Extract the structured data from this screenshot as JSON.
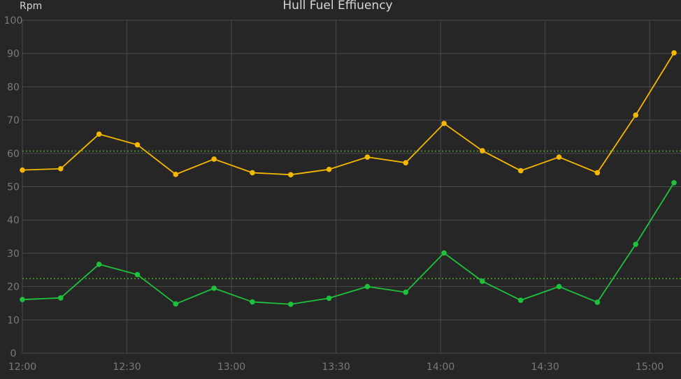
{
  "chart_data": {
    "type": "line",
    "title": "Hull Fuel Effiuency",
    "xlabel": "",
    "ylabel": "Rpm",
    "ylim": [
      0,
      100
    ],
    "yticks": [
      "0",
      "10",
      "20",
      "30",
      "40",
      "50",
      "60",
      "70",
      "80",
      "90",
      "100"
    ],
    "xticks": [
      "12:00",
      "12:30",
      "13:00",
      "13:30",
      "14:00",
      "14:30",
      "15:00"
    ],
    "xlim": [
      "12:00",
      "15:09"
    ],
    "grid": true,
    "x": [
      "12:00",
      "12:11",
      "12:22",
      "12:33",
      "12:44",
      "12:55",
      "13:06",
      "13:17",
      "13:28",
      "13:39",
      "13:50",
      "14:01",
      "14:12",
      "14:23",
      "14:34",
      "14:45",
      "14:56",
      "15:07"
    ],
    "series": [
      {
        "color": "#f5b800",
        "values": [
          55,
          55.4,
          65.8,
          62.6,
          53.7,
          58.3,
          54.2,
          53.6,
          55.2,
          58.9,
          57.2,
          69,
          60.8,
          54.8,
          58.9,
          54.2,
          71.5,
          90.2
        ]
      },
      {
        "color": "#1ec13c",
        "values": [
          16.1,
          16.6,
          26.7,
          23.6,
          14.8,
          19.5,
          15.4,
          14.7,
          16.5,
          20,
          18.3,
          30.1,
          21.6,
          15.9,
          20,
          15.3,
          32.7,
          51.2
        ]
      }
    ],
    "reference_lines": [
      {
        "value": 60.7,
        "color": "#4a9a2e"
      },
      {
        "value": 22.4,
        "color": "#4a9a2e"
      }
    ]
  }
}
